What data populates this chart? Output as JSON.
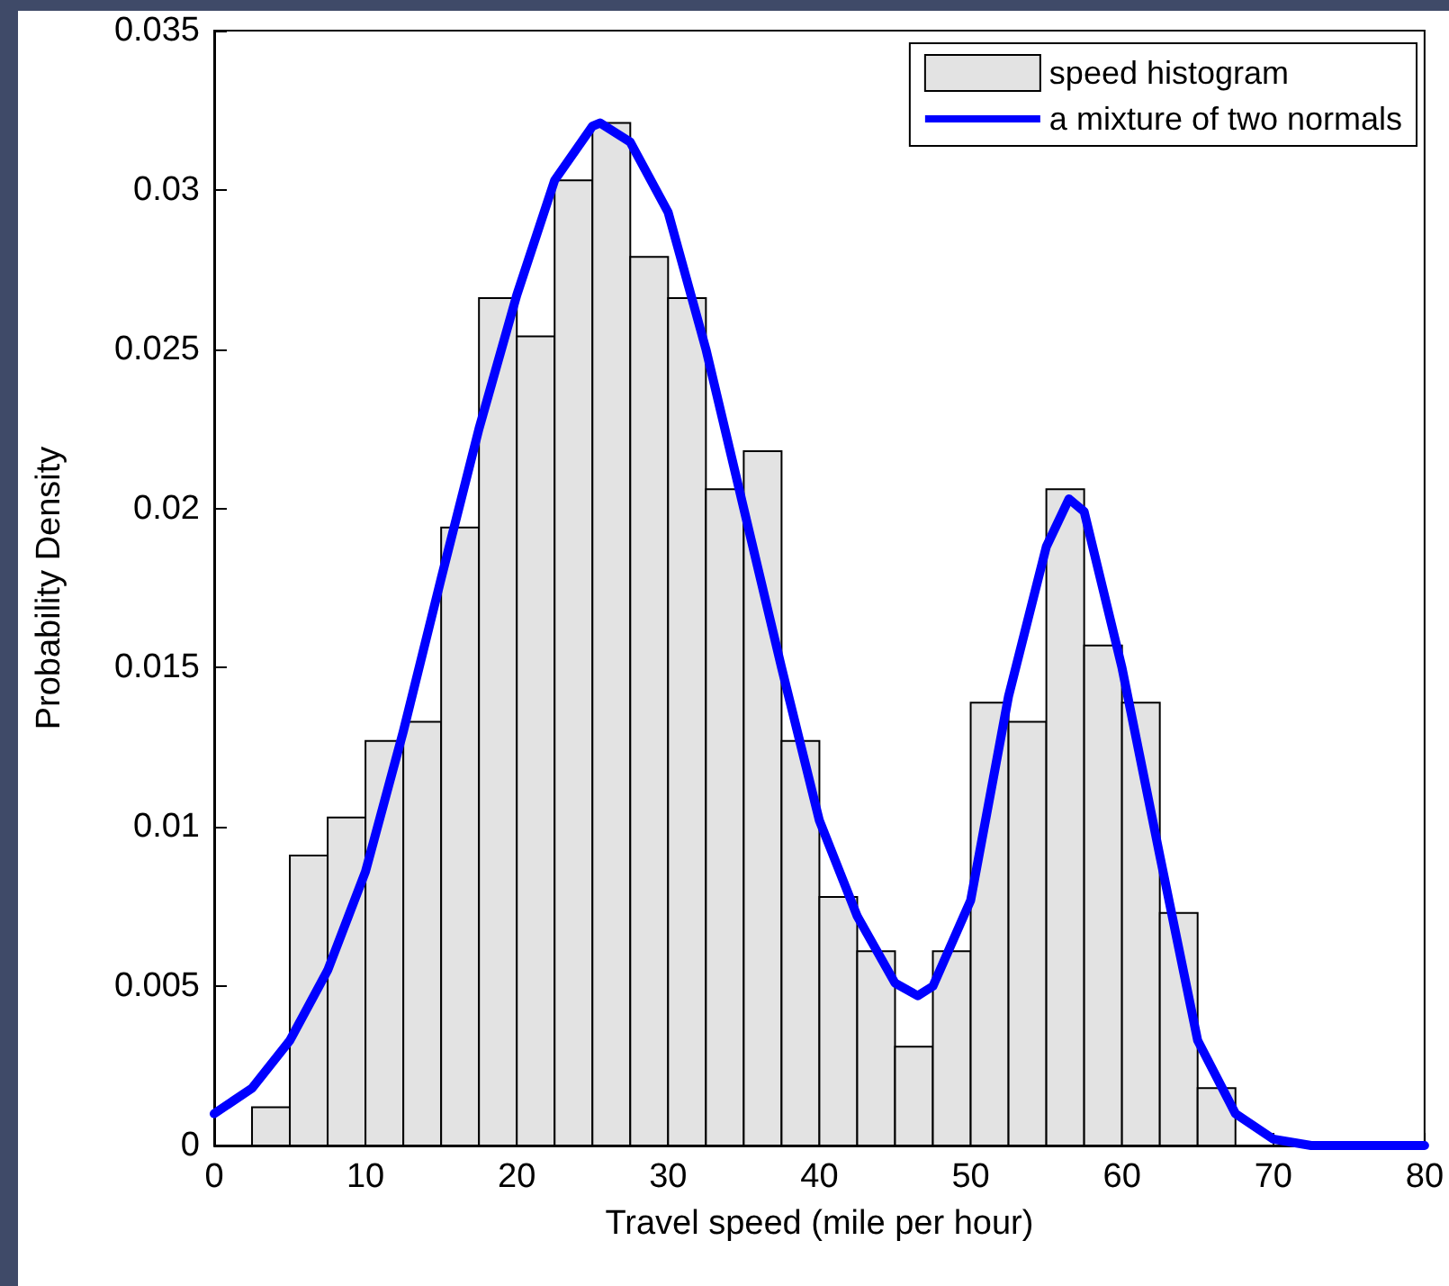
{
  "chart_data": {
    "type": "histogram",
    "xlabel": "Travel speed (mile per hour)",
    "ylabel": "Probability Density",
    "xlim": [
      0,
      80
    ],
    "xticks": [
      0,
      10,
      20,
      30,
      40,
      50,
      60,
      70,
      80
    ],
    "ylim": [
      0,
      0.035
    ],
    "yticks": [
      0,
      0.005,
      0.01,
      0.015,
      0.02,
      0.025,
      0.03,
      0.035
    ],
    "grid": false,
    "legend": "top right",
    "marker": "none",
    "line_style": "solid",
    "series": [
      {
        "name": "speed histogram",
        "type": "histogram",
        "color": "#e3e3e3",
        "bins": [
          2.5,
          5,
          7.5,
          10,
          12.5,
          15,
          17.5,
          20,
          22.5,
          25,
          27.5,
          30,
          32.5,
          35,
          37.5,
          40,
          42.5,
          45,
          47.5,
          50,
          52.5,
          55,
          57.5,
          60,
          62.5,
          65,
          67.5
        ],
        "values": [
          0.0012,
          0.0091,
          0.0103,
          0.0127,
          0.0133,
          0.0194,
          0.0266,
          0.0254,
          0.0303,
          0.0321,
          0.0279,
          0.0266,
          0.0206,
          0.0218,
          0.0127,
          0.0078,
          0.0061,
          0.0031,
          0.0061,
          0.0139,
          0.0133,
          0.0206,
          0.0157,
          0.0139,
          0.0073,
          0.0018
        ]
      },
      {
        "name": "a mixture of two normals",
        "type": "line",
        "color": "#0000ff",
        "x": [
          0,
          2.5,
          5,
          7.5,
          10,
          12.5,
          15,
          17.5,
          20,
          22.5,
          25,
          25.5,
          27.5,
          30,
          32.5,
          35,
          37.5,
          40,
          42.5,
          45,
          46.5,
          47.5,
          50,
          52.5,
          55,
          56.5,
          57.5,
          60,
          62.5,
          65,
          67.5,
          70,
          72.5,
          80
        ],
        "values": [
          0.001,
          0.0018,
          0.0033,
          0.0055,
          0.0086,
          0.013,
          0.0178,
          0.0225,
          0.0267,
          0.0303,
          0.032,
          0.0321,
          0.0315,
          0.0293,
          0.025,
          0.02,
          0.015,
          0.0102,
          0.0072,
          0.0051,
          0.0047,
          0.005,
          0.0077,
          0.0141,
          0.0188,
          0.0203,
          0.0199,
          0.015,
          0.0091,
          0.0033,
          0.001,
          0.0002,
          0,
          0
        ]
      }
    ]
  }
}
